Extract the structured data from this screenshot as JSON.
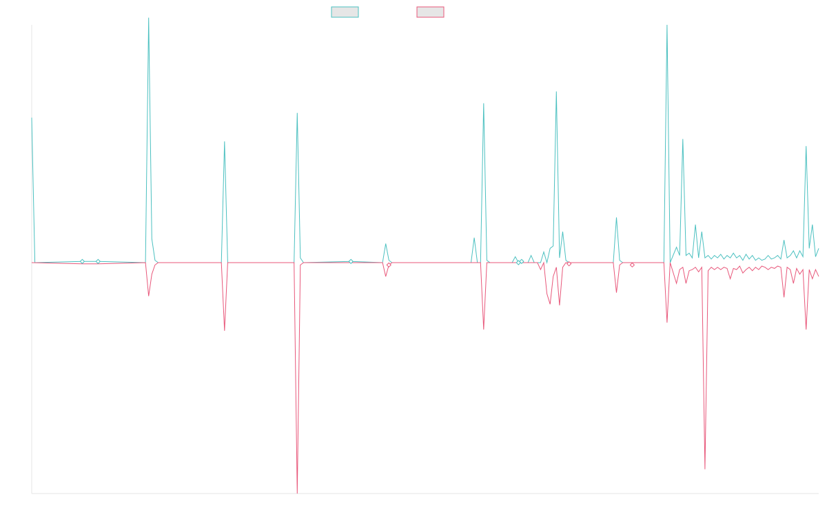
{
  "chart_data": {
    "type": "line",
    "title": "",
    "xlabel": "",
    "ylabel": "",
    "grid": false,
    "legend": "top-center",
    "ylim": [
      -10,
      10
    ],
    "x_count": 250,
    "series": [
      {
        "color": "#4bc0c0",
        "legend_fill": "#e6e6e6",
        "fill": "above",
        "points": [
          [
            0,
            6.1
          ],
          [
            1,
            0
          ],
          [
            16,
            0.05
          ],
          [
            21,
            0.05
          ],
          [
            36,
            0
          ],
          [
            37,
            10.3
          ],
          [
            38,
            1.0
          ],
          [
            39,
            0.1
          ],
          [
            40,
            0
          ],
          [
            60,
            0
          ],
          [
            61,
            5.1
          ],
          [
            62,
            0
          ],
          [
            83,
            0
          ],
          [
            84,
            6.3
          ],
          [
            85,
            0.2
          ],
          [
            86,
            0
          ],
          [
            101,
            0.05
          ],
          [
            111,
            0
          ],
          [
            112,
            0.8
          ],
          [
            113,
            0.1
          ],
          [
            114,
            0
          ],
          [
            139,
            0
          ],
          [
            140,
            1.05
          ],
          [
            141,
            0
          ],
          [
            142,
            0
          ],
          [
            143,
            6.7
          ],
          [
            144,
            0.1
          ],
          [
            145,
            0
          ],
          [
            152,
            0
          ],
          [
            153,
            0.25
          ],
          [
            154,
            0
          ],
          [
            157,
            0
          ],
          [
            158,
            0.3
          ],
          [
            159,
            0
          ],
          [
            161,
            0
          ],
          [
            162,
            0.45
          ],
          [
            163,
            0
          ],
          [
            164,
            0.6
          ],
          [
            165,
            0.7
          ],
          [
            166,
            7.2
          ],
          [
            167,
            0.2
          ],
          [
            168,
            1.3
          ],
          [
            169,
            0.1
          ],
          [
            170,
            0
          ],
          [
            184,
            0
          ],
          [
            185,
            1.9
          ],
          [
            186,
            0.1
          ],
          [
            187,
            0
          ],
          [
            200,
            0
          ],
          [
            201,
            10.0
          ],
          [
            202,
            0
          ],
          [
            204,
            0.65
          ],
          [
            205,
            0.3
          ],
          [
            206,
            5.2
          ],
          [
            207,
            0.3
          ],
          [
            208,
            0.4
          ],
          [
            209,
            0.2
          ],
          [
            210,
            1.6
          ],
          [
            211,
            0.2
          ],
          [
            212,
            1.3
          ],
          [
            213,
            0.2
          ],
          [
            214,
            0.3
          ],
          [
            215,
            0.15
          ],
          [
            216,
            0.3
          ],
          [
            217,
            0.2
          ],
          [
            218,
            0.35
          ],
          [
            219,
            0.15
          ],
          [
            220,
            0.3
          ],
          [
            221,
            0.2
          ],
          [
            222,
            0.4
          ],
          [
            223,
            0.2
          ],
          [
            224,
            0.3
          ],
          [
            225,
            0.1
          ],
          [
            226,
            0.35
          ],
          [
            227,
            0.15
          ],
          [
            228,
            0.3
          ],
          [
            229,
            0.1
          ],
          [
            230,
            0.2
          ],
          [
            231,
            0.1
          ],
          [
            232,
            0.15
          ],
          [
            233,
            0.3
          ],
          [
            234,
            0.15
          ],
          [
            235,
            0.2
          ],
          [
            236,
            0.3
          ],
          [
            237,
            0.15
          ],
          [
            238,
            0.95
          ],
          [
            239,
            0.2
          ],
          [
            240,
            0.3
          ],
          [
            241,
            0.5
          ],
          [
            242,
            0.2
          ],
          [
            243,
            0.5
          ],
          [
            244,
            0.25
          ],
          [
            245,
            4.9
          ],
          [
            246,
            0.6
          ],
          [
            247,
            1.6
          ],
          [
            248,
            0.25
          ],
          [
            249,
            0.6
          ]
        ]
      },
      {
        "color": "#e8577a",
        "legend_fill": "#e6e6e6",
        "fill": "below",
        "points": [
          [
            0,
            0
          ],
          [
            16,
            -0.05
          ],
          [
            21,
            -0.05
          ],
          [
            36,
            0
          ],
          [
            37,
            -1.45
          ],
          [
            38,
            -0.5
          ],
          [
            39,
            -0.1
          ],
          [
            40,
            0
          ],
          [
            60,
            0
          ],
          [
            61,
            -2.95
          ],
          [
            62,
            0
          ],
          [
            83,
            0
          ],
          [
            84,
            -10.0
          ],
          [
            85,
            -0.1
          ],
          [
            86,
            0
          ],
          [
            111,
            0
          ],
          [
            112,
            -0.6
          ],
          [
            113,
            -0.1
          ],
          [
            114,
            0
          ],
          [
            142,
            0
          ],
          [
            143,
            -2.9
          ],
          [
            144,
            0
          ],
          [
            160,
            0
          ],
          [
            161,
            -0.3
          ],
          [
            162,
            0
          ],
          [
            163,
            -1.35
          ],
          [
            164,
            -1.8
          ],
          [
            165,
            -0.6
          ],
          [
            166,
            -0.2
          ],
          [
            167,
            -1.85
          ],
          [
            168,
            -0.2
          ],
          [
            169,
            0
          ],
          [
            184,
            0
          ],
          [
            185,
            -1.3
          ],
          [
            186,
            -0.1
          ],
          [
            187,
            0
          ],
          [
            200,
            0
          ],
          [
            201,
            -2.6
          ],
          [
            202,
            0
          ],
          [
            204,
            -0.9
          ],
          [
            205,
            -0.3
          ],
          [
            206,
            -0.2
          ],
          [
            207,
            -0.9
          ],
          [
            208,
            -0.35
          ],
          [
            209,
            -0.3
          ],
          [
            210,
            -0.2
          ],
          [
            211,
            -0.4
          ],
          [
            212,
            -0.2
          ],
          [
            213,
            -8.95
          ],
          [
            214,
            -0.35
          ],
          [
            215,
            -0.2
          ],
          [
            216,
            -0.3
          ],
          [
            217,
            -0.2
          ],
          [
            218,
            -0.3
          ],
          [
            219,
            -0.2
          ],
          [
            220,
            -0.25
          ],
          [
            221,
            -0.7
          ],
          [
            222,
            -0.25
          ],
          [
            223,
            -0.3
          ],
          [
            224,
            -0.15
          ],
          [
            225,
            -0.45
          ],
          [
            226,
            -0.3
          ],
          [
            227,
            -0.2
          ],
          [
            228,
            -0.35
          ],
          [
            229,
            -0.2
          ],
          [
            230,
            -0.3
          ],
          [
            231,
            -0.15
          ],
          [
            232,
            -0.2
          ],
          [
            233,
            -0.3
          ],
          [
            234,
            -0.2
          ],
          [
            235,
            -0.25
          ],
          [
            236,
            -0.15
          ],
          [
            237,
            -0.2
          ],
          [
            238,
            -1.5
          ],
          [
            239,
            -0.2
          ],
          [
            240,
            -0.3
          ],
          [
            241,
            -0.9
          ],
          [
            242,
            -0.25
          ],
          [
            243,
            -0.5
          ],
          [
            244,
            -0.3
          ],
          [
            245,
            -2.9
          ],
          [
            246,
            -0.3
          ],
          [
            247,
            -0.7
          ],
          [
            248,
            -0.3
          ],
          [
            249,
            -0.6
          ]
        ]
      }
    ],
    "markers": [
      {
        "series": 0,
        "x": 16,
        "y": 0.05
      },
      {
        "series": 0,
        "x": 21,
        "y": 0.05
      },
      {
        "series": 0,
        "x": 101,
        "y": 0.05
      },
      {
        "series": 0,
        "x": 154,
        "y": 0
      },
      {
        "series": 0,
        "x": 155,
        "y": 0.05
      },
      {
        "series": 1,
        "x": 113,
        "y": -0.1
      },
      {
        "series": 1,
        "x": 170,
        "y": -0.05
      },
      {
        "series": 1,
        "x": 190,
        "y": -0.1
      }
    ]
  }
}
